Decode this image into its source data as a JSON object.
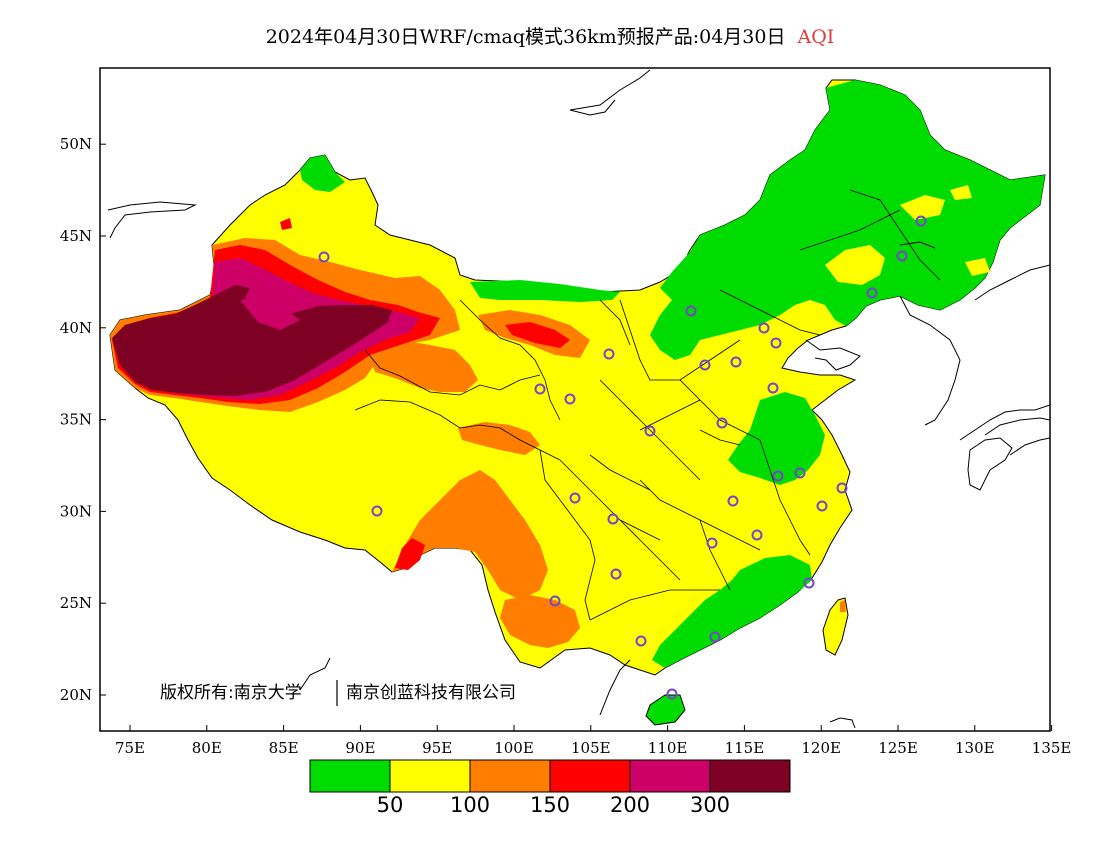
{
  "title": {
    "main": "2024年04月30日WRF/cmaq模式36km预报产品:04月30日",
    "product": "AQI"
  },
  "axes": {
    "x_ticks": [
      "75E",
      "80E",
      "85E",
      "90E",
      "95E",
      "100E",
      "105E",
      "110E",
      "115E",
      "120E",
      "125E",
      "130E",
      "135E"
    ],
    "y_ticks": [
      "20N",
      "25N",
      "30N",
      "35N",
      "40N",
      "45N",
      "50N"
    ]
  },
  "legend": {
    "colors": [
      "#00dc00",
      "#ffff00",
      "#ff7e00",
      "#ff0000",
      "#cc0066",
      "#7e0023"
    ],
    "labels": [
      "50",
      "100",
      "150",
      "200",
      "300"
    ]
  },
  "copyright": {
    "owner": "版权所有:南京大学",
    "partner": "南京创蓝科技有限公司"
  },
  "colors": {
    "accent": "#e03c3c",
    "station_marker": "#7744cc"
  }
}
